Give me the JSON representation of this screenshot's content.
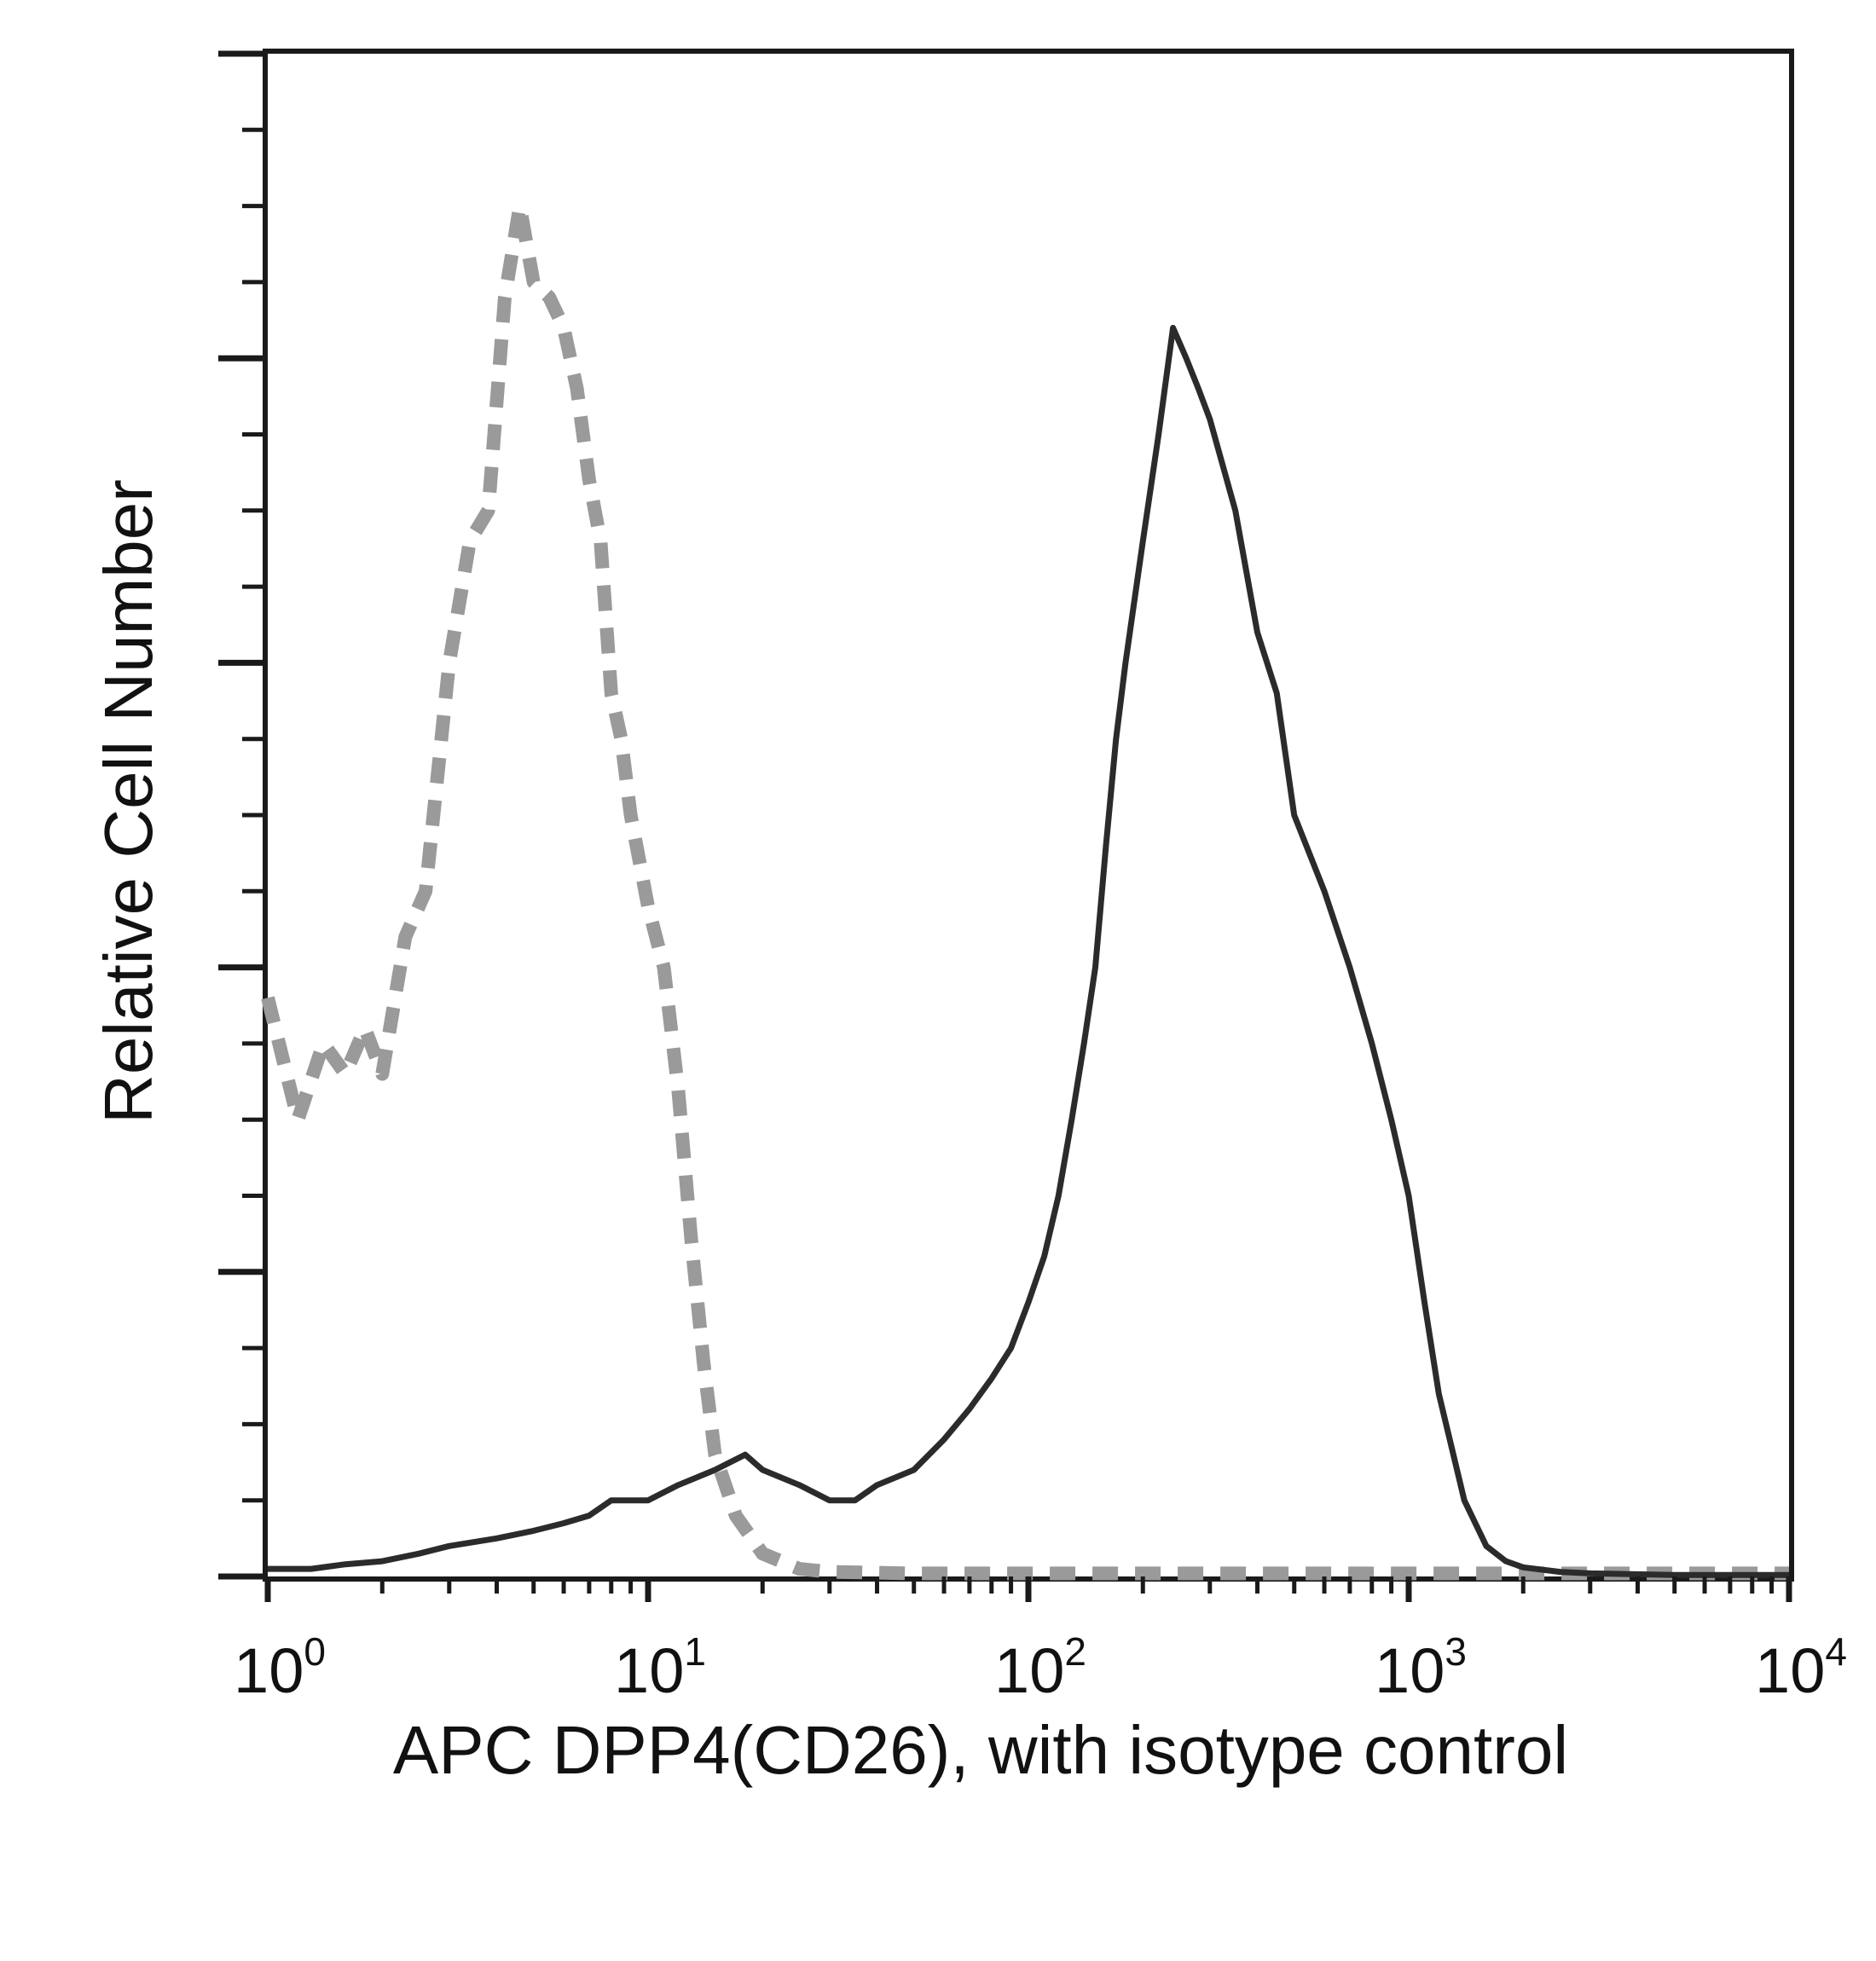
{
  "chart_data": {
    "type": "line",
    "xscale": "log",
    "xlim": [
      1,
      10000
    ],
    "ylim": [
      0,
      100
    ],
    "grid": false,
    "legend": "none",
    "xlabel": "APC DPP4(CD26), with isotype control",
    "ylabel": "Relative Cell Number",
    "x_ticks": [
      {
        "value": 1,
        "base": "10",
        "exp": "0"
      },
      {
        "value": 10,
        "base": "10",
        "exp": "1"
      },
      {
        "value": 100,
        "base": "10",
        "exp": "2"
      },
      {
        "value": 1000,
        "base": "10",
        "exp": "3"
      },
      {
        "value": 10000,
        "base": "10",
        "exp": "4"
      }
    ],
    "series": [
      {
        "style": "dashed",
        "color": "#9a9a9a",
        "x": [
          1,
          1.2,
          1.4,
          1.6,
          1.8,
          2.0,
          2.3,
          2.6,
          3.0,
          3.4,
          3.8,
          4.2,
          4.6,
          5.0,
          5.5,
          6.0,
          6.5,
          7.0,
          7.5,
          8.0,
          8.5,
          9.0,
          10,
          11,
          12,
          13,
          14,
          15,
          17,
          20,
          25,
          30,
          50,
          100,
          200,
          500,
          1000,
          2000,
          5000,
          10000
        ],
        "y": [
          38,
          30,
          35,
          33,
          36,
          33,
          42,
          45,
          60,
          68,
          70,
          84,
          90,
          85,
          84,
          82,
          78,
          72,
          68,
          58,
          55,
          50,
          44,
          40,
          32,
          22,
          14,
          8,
          4,
          1.5,
          0.5,
          0.3,
          0.2,
          0.2,
          0.2,
          0.2,
          0.2,
          0.2,
          0.2,
          0.2
        ]
      },
      {
        "style": "solid",
        "color": "#2b2b2b",
        "x": [
          1,
          1.3,
          1.6,
          2.0,
          2.5,
          3.0,
          4.0,
          5.0,
          6.0,
          7.0,
          8.0,
          10,
          12,
          15,
          18,
          20,
          25,
          30,
          35,
          40,
          50,
          60,
          70,
          80,
          90,
          100,
          110,
          120,
          130,
          140,
          150,
          160,
          170,
          180,
          200,
          220,
          240,
          260,
          280,
          300,
          350,
          400,
          450,
          500,
          600,
          700,
          800,
          900,
          1000,
          1100,
          1200,
          1400,
          1600,
          1800,
          2000,
          2500,
          3000,
          5000,
          10000
        ],
        "y": [
          0.5,
          0.5,
          0.8,
          1,
          1.5,
          2,
          2.5,
          3,
          3.5,
          4,
          5,
          5,
          6,
          7,
          8,
          7,
          6,
          5,
          5,
          6,
          7,
          9,
          11,
          13,
          15,
          18,
          21,
          25,
          30,
          35,
          40,
          48,
          55,
          60,
          68,
          75,
          82,
          80,
          78,
          76,
          70,
          62,
          58,
          50,
          45,
          40,
          35,
          30,
          25,
          18,
          12,
          5,
          2,
          1,
          0.6,
          0.3,
          0.2,
          0.1,
          0.1
        ]
      }
    ]
  }
}
